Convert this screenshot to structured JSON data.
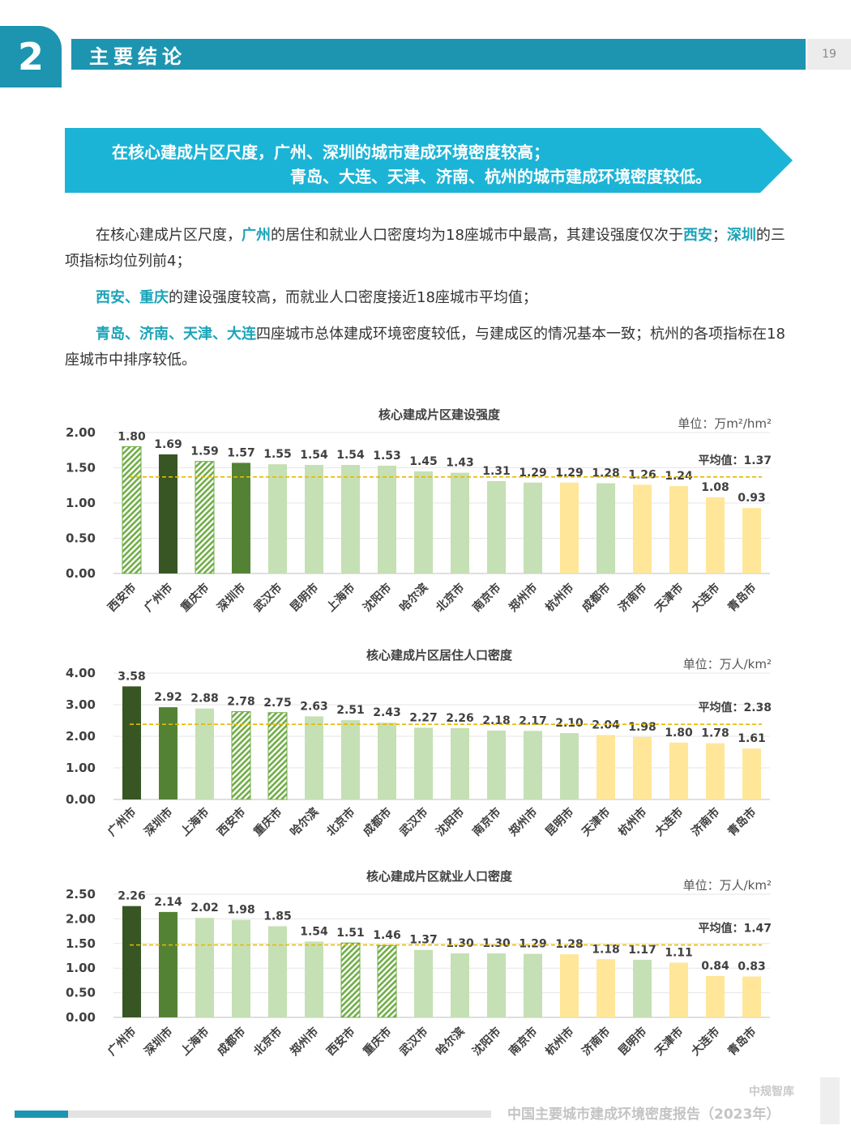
{
  "header": {
    "section_number": "2",
    "title": "主要结论",
    "page_number": "19"
  },
  "banner": {
    "line1": "在核心建成片区尺度，广州、深圳的城市建成环境密度较高；",
    "line2": "青岛、大连、天津、济南、杭州的城市建成环境密度较低。"
  },
  "paragraphs": [
    [
      {
        "t": "在核心建成片区尺度，",
        "h": false
      },
      {
        "t": "广州",
        "h": true
      },
      {
        "t": "的居住和就业人口密度均为18座城市中最高，其建设强度仅次于",
        "h": false
      },
      {
        "t": "西安",
        "h": true
      },
      {
        "t": "；",
        "h": false
      },
      {
        "t": "深圳",
        "h": true
      },
      {
        "t": "的三项指标均位列前4；",
        "h": false
      }
    ],
    [
      {
        "t": "西安、重庆",
        "h": true
      },
      {
        "t": "的建设强度较高，而就业人口密度接近18座城市平均值；",
        "h": false
      }
    ],
    [
      {
        "t": "青岛、济南、天津、大连",
        "h": true
      },
      {
        "t": "四座城市总体建成环境密度较低，与建成区的情况基本一致；杭州的各项指标在18座城市中排序较低。",
        "h": false
      }
    ]
  ],
  "colors": {
    "dark_green": "#375623",
    "mid_green": "#548235",
    "light_green": "#c5e0b4",
    "yellow": "#ffe699",
    "hatch_green": "#70ad47",
    "avg_line": "#e6b800",
    "accent": "#1d95b1"
  },
  "chart_data": [
    {
      "type": "bar",
      "title": "核心建成片区建设强度",
      "unit": "单位：万m²/hm²",
      "ylim": [
        0,
        2
      ],
      "yticks": [
        "0.00",
        "0.50",
        "1.00",
        "1.50",
        "2.00"
      ],
      "categories": [
        "西安市",
        "广州市",
        "重庆市",
        "深圳市",
        "武汉市",
        "昆明市",
        "上海市",
        "沈阳市",
        "哈尔滨",
        "北京市",
        "南京市",
        "郑州市",
        "杭州市",
        "成都市",
        "济南市",
        "天津市",
        "大连市",
        "青岛市"
      ],
      "values": [
        1.8,
        1.69,
        1.59,
        1.57,
        1.55,
        1.54,
        1.54,
        1.53,
        1.45,
        1.43,
        1.31,
        1.29,
        1.29,
        1.28,
        1.26,
        1.24,
        1.08,
        0.93
      ],
      "labels": [
        "1.80",
        "1.69",
        "1.59",
        "1.57",
        "1.55",
        "1.54",
        "1.54",
        "1.53",
        "1.45",
        "1.43",
        "1.31",
        "1.29",
        "1.29",
        "1.28",
        "1.26",
        "1.24",
        "1.08",
        "0.93"
      ],
      "styles": [
        "hatch",
        "dark",
        "hatch",
        "mid",
        "light",
        "light",
        "light",
        "light",
        "light",
        "light",
        "light",
        "light",
        "yellow",
        "light",
        "yellow",
        "yellow",
        "yellow",
        "yellow"
      ],
      "average": 1.37,
      "average_label": "平均值：1.37",
      "grid": true
    },
    {
      "type": "bar",
      "title": "核心建成片区居住人口密度",
      "unit": "单位：万人/km²",
      "ylim": [
        0,
        4
      ],
      "yticks": [
        "0.00",
        "1.00",
        "2.00",
        "3.00",
        "4.00"
      ],
      "categories": [
        "广州市",
        "深圳市",
        "上海市",
        "西安市",
        "重庆市",
        "哈尔滨",
        "北京市",
        "成都市",
        "武汉市",
        "沈阳市",
        "南京市",
        "郑州市",
        "昆明市",
        "天津市",
        "杭州市",
        "大连市",
        "济南市",
        "青岛市"
      ],
      "values": [
        3.58,
        2.92,
        2.88,
        2.78,
        2.75,
        2.63,
        2.51,
        2.43,
        2.27,
        2.26,
        2.18,
        2.17,
        2.1,
        2.04,
        1.98,
        1.8,
        1.78,
        1.61
      ],
      "labels": [
        "3.58",
        "2.92",
        "2.88",
        "2.78",
        "2.75",
        "2.63",
        "2.51",
        "2.43",
        "2.27",
        "2.26",
        "2.18",
        "2.17",
        "2.10",
        "2.04",
        "1.98",
        "1.80",
        "1.78",
        "1.61"
      ],
      "styles": [
        "dark",
        "mid",
        "light",
        "hatch",
        "hatch",
        "light",
        "light",
        "light",
        "light",
        "light",
        "light",
        "light",
        "light",
        "yellow",
        "yellow",
        "yellow",
        "yellow",
        "yellow"
      ],
      "average": 2.38,
      "average_label": "平均值：2.38",
      "grid": true
    },
    {
      "type": "bar",
      "title": "核心建成片区就业人口密度",
      "unit": "单位：万人/km²",
      "ylim": [
        0,
        2.5
      ],
      "yticks": [
        "0.00",
        "0.50",
        "1.00",
        "1.50",
        "2.00",
        "2.50"
      ],
      "categories": [
        "广州市",
        "深圳市",
        "上海市",
        "成都市",
        "北京市",
        "郑州市",
        "西安市",
        "重庆市",
        "武汉市",
        "哈尔滨",
        "沈阳市",
        "南京市",
        "杭州市",
        "济南市",
        "昆明市",
        "天津市",
        "大连市",
        "青岛市"
      ],
      "values": [
        2.26,
        2.14,
        2.02,
        1.98,
        1.85,
        1.54,
        1.51,
        1.46,
        1.37,
        1.3,
        1.3,
        1.29,
        1.28,
        1.18,
        1.17,
        1.11,
        0.84,
        0.83
      ],
      "labels": [
        "2.26",
        "2.14",
        "2.02",
        "1.98",
        "1.85",
        "1.54",
        "1.51",
        "1.46",
        "1.37",
        "1.30",
        "1.30",
        "1.29",
        "1.28",
        "1.18",
        "1.17",
        "1.11",
        "0.84",
        "0.83"
      ],
      "styles": [
        "dark",
        "mid",
        "light",
        "light",
        "light",
        "light",
        "hatch",
        "hatch",
        "light",
        "light",
        "light",
        "light",
        "yellow",
        "yellow",
        "light",
        "yellow",
        "yellow",
        "yellow"
      ],
      "average": 1.47,
      "average_label": "平均值：1.47",
      "grid": true
    }
  ],
  "footer": {
    "brand": "中规智库",
    "title": "中国主要城市建成环境密度报告（2023年）"
  }
}
